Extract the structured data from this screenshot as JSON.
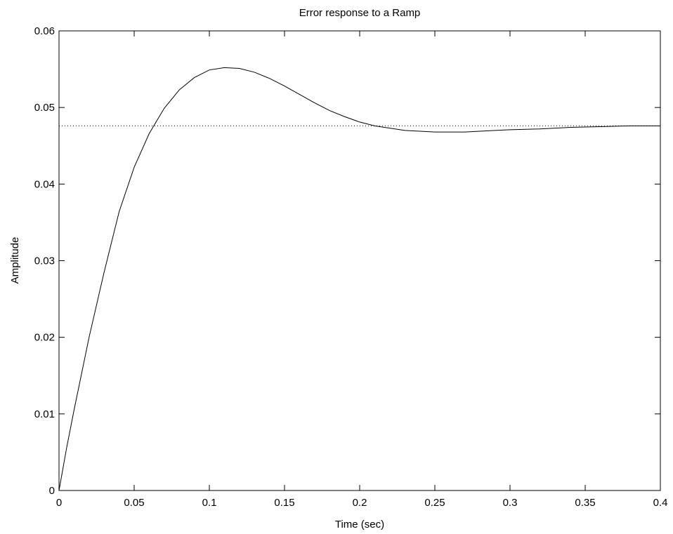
{
  "chart_data": {
    "type": "line",
    "title": "Error response to a Ramp",
    "xlabel": "Time (sec)",
    "ylabel": "Amplitude",
    "xlim": [
      0,
      0.4
    ],
    "ylim": [
      0,
      0.06
    ],
    "x_ticks": [
      0,
      0.05,
      0.1,
      0.15,
      0.2,
      0.25,
      0.3,
      0.35,
      0.4
    ],
    "x_tick_labels": [
      "0",
      "0.05",
      "0.1",
      "0.15",
      "0.2",
      "0.25",
      "0.3",
      "0.35",
      "0.4"
    ],
    "y_ticks": [
      0,
      0.01,
      0.02,
      0.03,
      0.04,
      0.05,
      0.06
    ],
    "y_tick_labels": [
      "0",
      "0.01",
      "0.02",
      "0.03",
      "0.04",
      "0.05",
      "0.06"
    ],
    "grid": false,
    "series": [
      {
        "line_color": "#000000",
        "line_style": "solid",
        "x": [
          0,
          0.005,
          0.01,
          0.02,
          0.03,
          0.04,
          0.05,
          0.06,
          0.07,
          0.08,
          0.09,
          0.1,
          0.11,
          0.12,
          0.13,
          0.14,
          0.15,
          0.16,
          0.17,
          0.18,
          0.19,
          0.2,
          0.21,
          0.22,
          0.23,
          0.24,
          0.25,
          0.26,
          0.27,
          0.28,
          0.29,
          0.3,
          0.32,
          0.34,
          0.36,
          0.38,
          0.4
        ],
        "y": [
          0,
          0.0055,
          0.0105,
          0.02,
          0.0285,
          0.0364,
          0.0422,
          0.0466,
          0.0499,
          0.0523,
          0.0539,
          0.0549,
          0.0552,
          0.0551,
          0.0546,
          0.0538,
          0.0528,
          0.0517,
          0.0506,
          0.0496,
          0.0488,
          0.0481,
          0.0476,
          0.0473,
          0.047,
          0.0469,
          0.0468,
          0.0468,
          0.0468,
          0.0469,
          0.047,
          0.0471,
          0.0472,
          0.0474,
          0.0475,
          0.0476,
          0.0476
        ]
      },
      {
        "line_color": "#000000",
        "line_style": "dotted",
        "x": [
          0,
          0.4
        ],
        "y": [
          0.0476,
          0.0476
        ]
      }
    ]
  }
}
